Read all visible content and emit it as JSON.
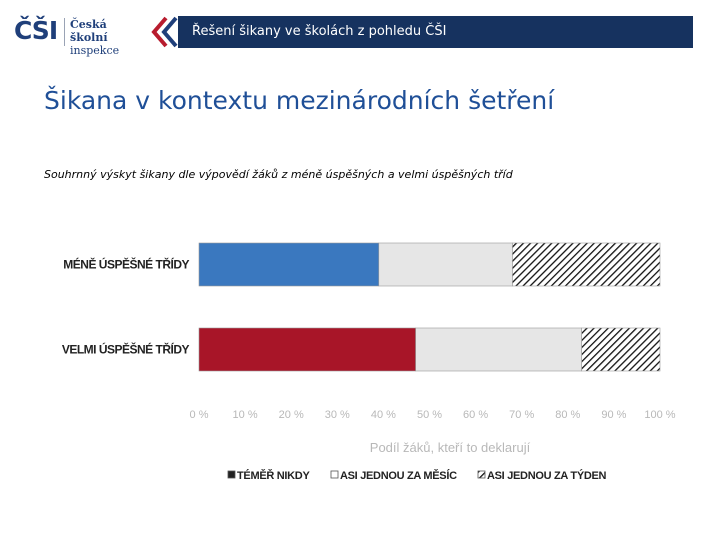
{
  "header": {
    "logo_abbr": "ČŠI",
    "logo_line1": "Česká školní",
    "logo_line2": "inspekce",
    "bar_title": "Řešení šikany ve školách z pohledu ČŠI"
  },
  "slide": {
    "title": "Šikana v kontextu mezinárodních šetření",
    "subtitle": "Souhrnný výskyt šikany dle výpovědí žáků z méně úspěšných a velmi úspěšných tříd"
  },
  "colors": {
    "header_bar": "#16325f",
    "title": "#1f4f97",
    "series_never_row1": "#3a78bf",
    "series_never_row2": "#a81528",
    "series_month": "#e6e6e6",
    "series_week_hatch": "#111111"
  },
  "chart_data": {
    "type": "bar",
    "orientation": "horizontal",
    "stacked": true,
    "categories": [
      "MÉNĚ ÚSPĚŠNÉ TŘÍDY",
      "VELMI ÚSPĚŠNÉ TŘÍDY"
    ],
    "series": [
      {
        "name": "TÉMĚŘ NIKDY",
        "values": [
          39,
          47
        ]
      },
      {
        "name": "ASI JEDNOU ZA MĚSÍC",
        "values": [
          29,
          36
        ]
      },
      {
        "name": "ASI JEDNOU ZA TÝDEN",
        "values": [
          32,
          17
        ]
      }
    ],
    "x_ticks": [
      "0 %",
      "10 %",
      "20 %",
      "30 %",
      "40 %",
      "50 %",
      "60 %",
      "70 %",
      "80 %",
      "90 %",
      "100 %"
    ],
    "xlim": [
      0,
      100
    ],
    "xlabel": "Podíl žáků, kteří to deklarují",
    "legend": {
      "position": "bottom",
      "items": [
        {
          "marker": "▪",
          "label": "TÉMĚŘ NIKDY"
        },
        {
          "marker": "□",
          "label": "ASI JEDNOU ZA MĚSÍC"
        },
        {
          "marker": "▨",
          "label": "ASI JEDNOU ZA TÝDEN"
        }
      ]
    }
  }
}
